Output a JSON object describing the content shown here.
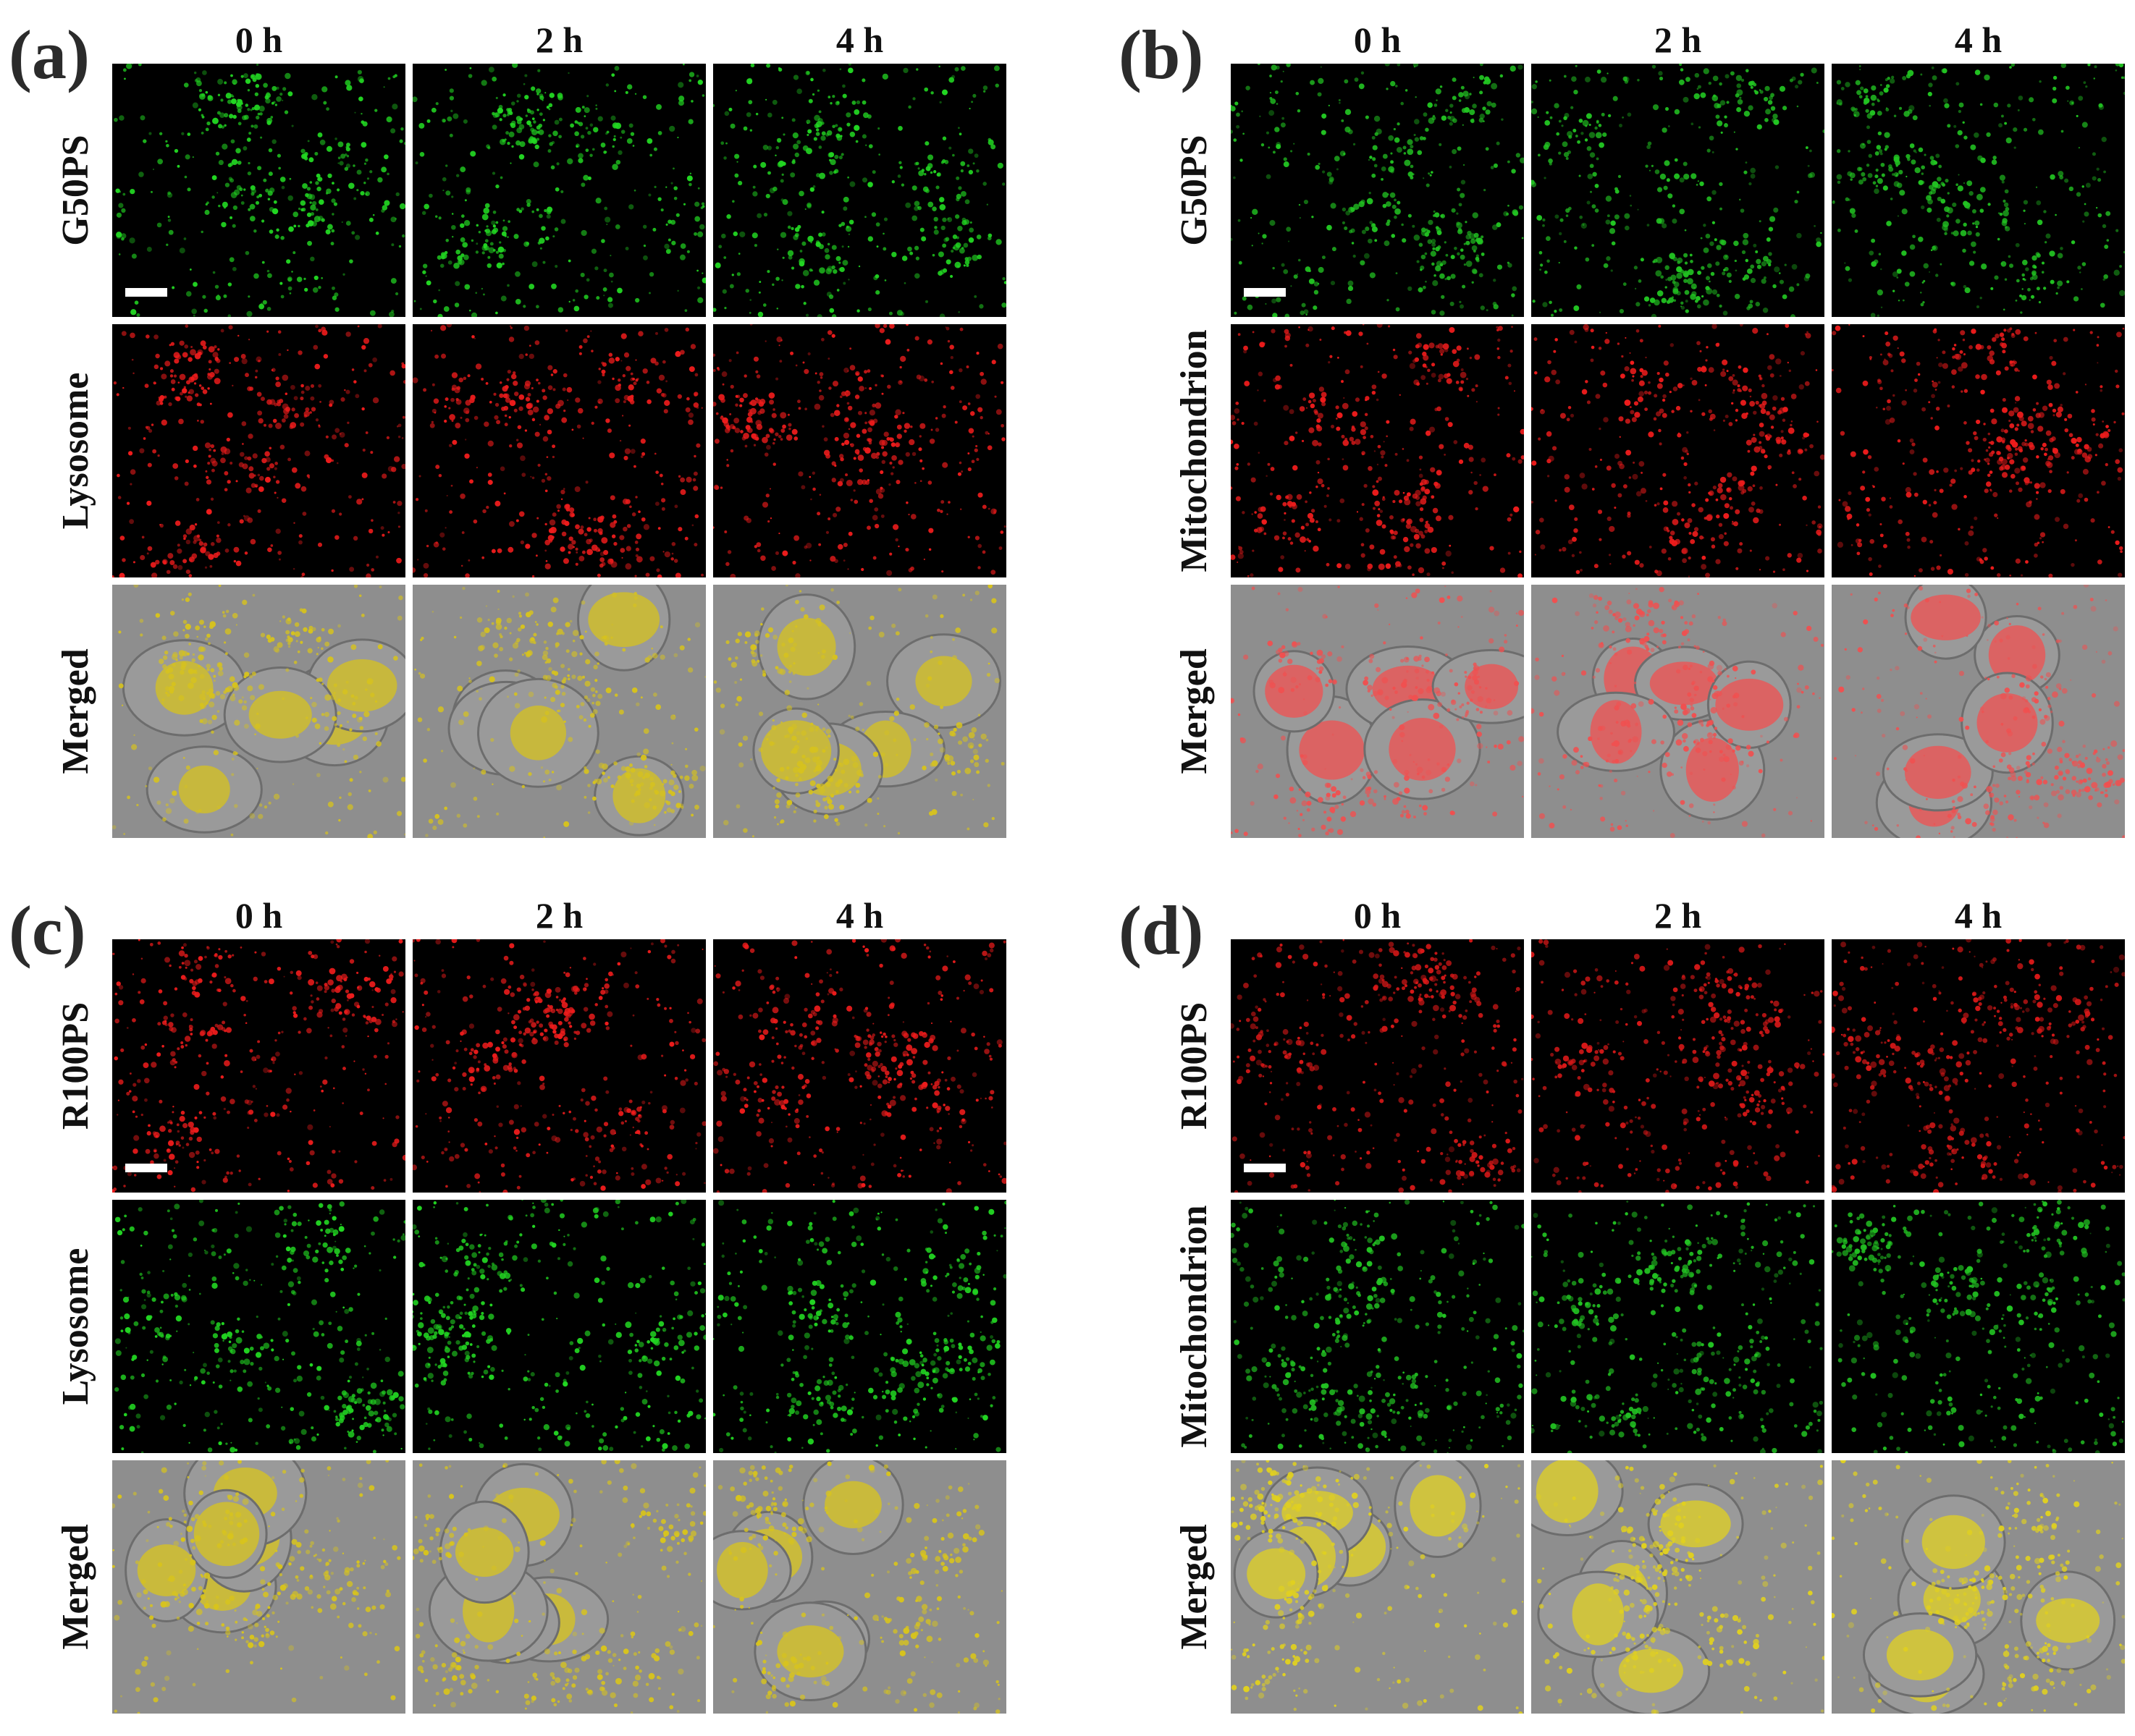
{
  "panels": [
    {
      "letter": "(a)",
      "columns": [
        "0 h",
        "2 h",
        "4 h"
      ],
      "rows": [
        {
          "label": "G50PS",
          "kind": "fluor",
          "color": "#22d622"
        },
        {
          "label": "Lysosome",
          "kind": "fluor",
          "color": "#ee1c1c"
        },
        {
          "label": "Merged",
          "kind": "merged",
          "color": "#d6c21e"
        }
      ]
    },
    {
      "letter": "(b)",
      "columns": [
        "0 h",
        "2 h",
        "4 h"
      ],
      "rows": [
        {
          "label": "G50PS",
          "kind": "fluor",
          "color": "#22c522"
        },
        {
          "label": "Mitochondrion",
          "kind": "fluor",
          "color": "#ee1c1c"
        },
        {
          "label": "Merged",
          "kind": "merged",
          "color": "#f05050"
        }
      ]
    },
    {
      "letter": "(c)",
      "columns": [
        "0 h",
        "2 h",
        "4 h"
      ],
      "rows": [
        {
          "label": "R100PS",
          "kind": "fluor",
          "color": "#ee1c1c"
        },
        {
          "label": "Lysosome",
          "kind": "fluor",
          "color": "#22d622"
        },
        {
          "label": "Merged",
          "kind": "merged",
          "color": "#d8c41c"
        }
      ]
    },
    {
      "letter": "(d)",
      "columns": [
        "0 h",
        "2 h",
        "4 h"
      ],
      "rows": [
        {
          "label": "R100PS",
          "kind": "fluor",
          "color": "#d81818"
        },
        {
          "label": "Mitochondrion",
          "kind": "fluor",
          "color": "#22c222"
        },
        {
          "label": "Merged",
          "kind": "merged",
          "color": "#e0d020"
        }
      ]
    }
  ]
}
